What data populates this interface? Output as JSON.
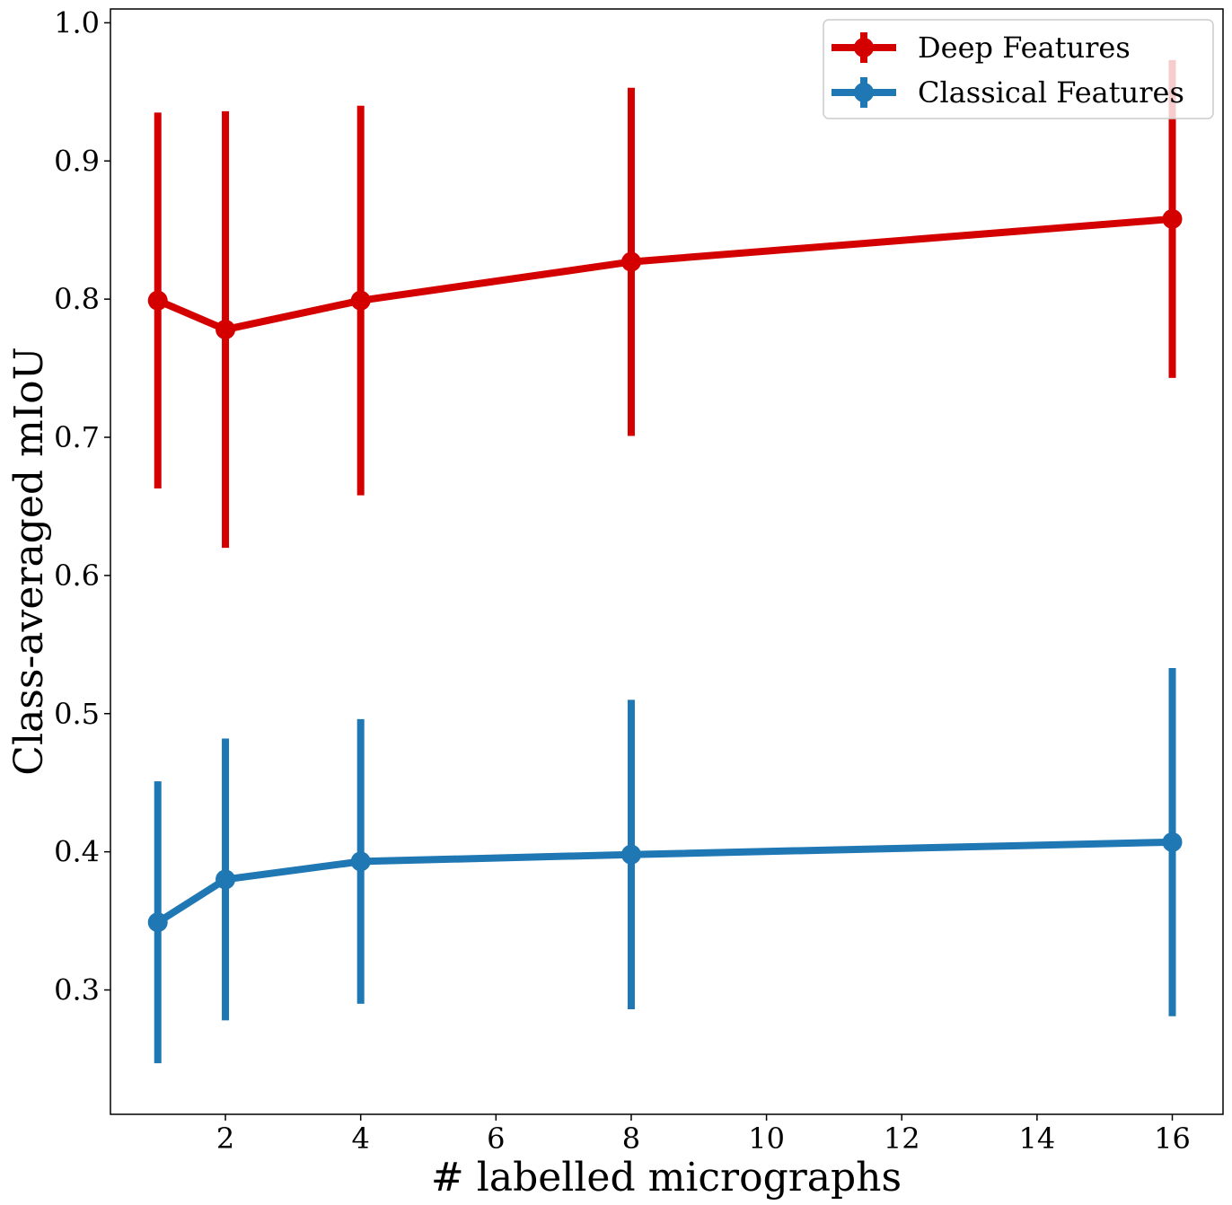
{
  "chart_data": {
    "type": "line",
    "xlabel": "# labelled micrographs",
    "ylabel": "Class-averaged mIoU",
    "xlim": [
      0.3,
      16.75
    ],
    "ylim": [
      0.21,
      1.01
    ],
    "x_ticks": [
      2,
      4,
      6,
      8,
      10,
      12,
      14,
      16
    ],
    "y_ticks": [
      0.3,
      0.4,
      0.5,
      0.6,
      0.7,
      0.8,
      0.9,
      1.0
    ],
    "x_tick_labels": [
      "2",
      "4",
      "6",
      "8",
      "10",
      "12",
      "14",
      "16"
    ],
    "y_tick_labels": [
      "0.3",
      "0.4",
      "0.5",
      "0.6",
      "0.7",
      "0.8",
      "0.9",
      "1.0"
    ],
    "legend_position": "top-right",
    "grid": false,
    "series": [
      {
        "name": "Deep Features",
        "color": "#d40000",
        "x": [
          1,
          2,
          4,
          8,
          16
        ],
        "y": [
          0.799,
          0.778,
          0.799,
          0.827,
          0.858
        ],
        "y_low": [
          0.663,
          0.62,
          0.658,
          0.701,
          0.743
        ],
        "y_high": [
          0.935,
          0.936,
          0.94,
          0.953,
          0.973
        ]
      },
      {
        "name": "Classical Features",
        "color": "#1f77b4",
        "x": [
          1,
          2,
          4,
          8,
          16
        ],
        "y": [
          0.349,
          0.38,
          0.393,
          0.398,
          0.407
        ],
        "y_low": [
          0.247,
          0.278,
          0.29,
          0.286,
          0.281
        ],
        "y_high": [
          0.451,
          0.482,
          0.496,
          0.51,
          0.533
        ]
      }
    ]
  }
}
